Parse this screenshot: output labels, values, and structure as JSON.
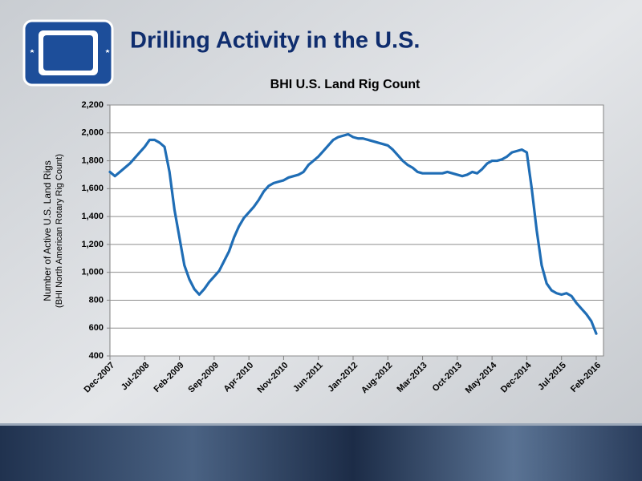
{
  "slide_title": "Drilling Activity in the U.S.",
  "chart_data": {
    "type": "line",
    "title": "BHI U.S. Land Rig Count",
    "y_label": "Number of Active U.S. Land Rigs",
    "y_sublabel": "(BHI North American Rotary Rig Count)",
    "x": [
      "Dec-2007",
      "Jan-2008",
      "Feb-2008",
      "Mar-2008",
      "Apr-2008",
      "May-2008",
      "Jun-2008",
      "Jul-2008",
      "Aug-2008",
      "Sep-2008",
      "Oct-2008",
      "Nov-2008",
      "Dec-2008",
      "Jan-2009",
      "Feb-2009",
      "Mar-2009",
      "Apr-2009",
      "May-2009",
      "Jun-2009",
      "Jul-2009",
      "Aug-2009",
      "Sep-2009",
      "Oct-2009",
      "Nov-2009",
      "Dec-2009",
      "Jan-2010",
      "Feb-2010",
      "Mar-2010",
      "Apr-2010",
      "May-2010",
      "Jun-2010",
      "Jul-2010",
      "Aug-2010",
      "Sep-2010",
      "Oct-2010",
      "Nov-2010",
      "Dec-2010",
      "Jan-2011",
      "Feb-2011",
      "Mar-2011",
      "Apr-2011",
      "May-2011",
      "Jun-2011",
      "Jul-2011",
      "Aug-2011",
      "Sep-2011",
      "Oct-2011",
      "Nov-2011",
      "Dec-2011",
      "Jan-2012",
      "Feb-2012",
      "Mar-2012",
      "Apr-2012",
      "May-2012",
      "Jun-2012",
      "Jul-2012",
      "Aug-2012",
      "Sep-2012",
      "Oct-2012",
      "Nov-2012",
      "Dec-2012",
      "Jan-2013",
      "Feb-2013",
      "Mar-2013",
      "Apr-2013",
      "May-2013",
      "Jun-2013",
      "Jul-2013",
      "Aug-2013",
      "Sep-2013",
      "Oct-2013",
      "Nov-2013",
      "Dec-2013",
      "Jan-2014",
      "Feb-2014",
      "Mar-2014",
      "Apr-2014",
      "May-2014",
      "Jun-2014",
      "Jul-2014",
      "Aug-2014",
      "Sep-2014",
      "Oct-2014",
      "Nov-2014",
      "Dec-2014",
      "Jan-2015",
      "Feb-2015",
      "Mar-2015",
      "Apr-2015",
      "May-2015",
      "Jun-2015",
      "Jul-2015",
      "Aug-2015",
      "Sep-2015",
      "Oct-2015",
      "Nov-2015",
      "Dec-2015",
      "Jan-2016",
      "Feb-2016"
    ],
    "values": [
      1720,
      1690,
      1720,
      1750,
      1780,
      1820,
      1860,
      1900,
      1950,
      1950,
      1930,
      1900,
      1720,
      1450,
      1250,
      1050,
      950,
      880,
      840,
      880,
      930,
      970,
      1010,
      1080,
      1150,
      1250,
      1330,
      1390,
      1430,
      1470,
      1520,
      1580,
      1620,
      1640,
      1650,
      1660,
      1680,
      1690,
      1700,
      1720,
      1770,
      1800,
      1830,
      1870,
      1910,
      1950,
      1970,
      1980,
      1990,
      1970,
      1960,
      1960,
      1950,
      1940,
      1930,
      1920,
      1910,
      1880,
      1840,
      1800,
      1770,
      1750,
      1720,
      1710,
      1710,
      1710,
      1710,
      1710,
      1720,
      1710,
      1700,
      1690,
      1700,
      1720,
      1710,
      1740,
      1780,
      1800,
      1800,
      1810,
      1830,
      1860,
      1870,
      1880,
      1860,
      1600,
      1300,
      1050,
      920,
      870,
      850,
      840,
      850,
      830,
      780,
      740,
      700,
      650,
      560
    ],
    "color": "#1f6db5",
    "xticks": [
      "Dec-2007",
      "Jul-2008",
      "Feb-2009",
      "Sep-2009",
      "Apr-2010",
      "Nov-2010",
      "Jun-2011",
      "Jan-2012",
      "Aug-2012",
      "Mar-2013",
      "Oct-2013",
      "May-2014",
      "Dec-2014",
      "Jul-2015",
      "Feb-2016"
    ],
    "ylim": [
      400,
      2200
    ],
    "yticks": [
      400,
      600,
      800,
      {
        "value": 1000,
        "label": "1,000"
      },
      {
        "value": 1200,
        "label": "1,200"
      },
      {
        "value": 1400,
        "label": "1,400"
      },
      {
        "value": 1600,
        "label": "1,600"
      },
      {
        "value": 1800,
        "label": "1,800"
      },
      {
        "value": 2000,
        "label": "2,000"
      },
      {
        "value": 2200,
        "label": "2,200"
      }
    ],
    "grid": true
  }
}
